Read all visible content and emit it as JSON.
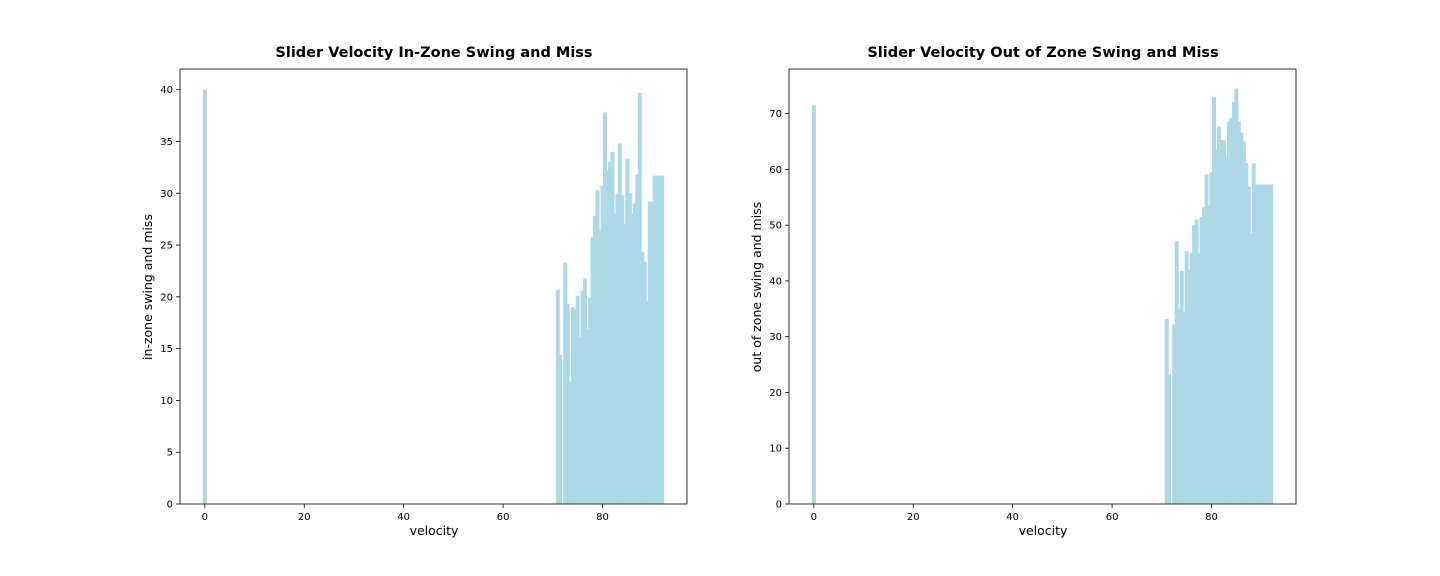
{
  "chart_data": [
    {
      "type": "bar",
      "title": "Slider Velocity In-Zone Swing and Miss",
      "xlabel": "velocity",
      "ylabel": "in-zone swing and miss",
      "xlim": [
        -5,
        97
      ],
      "ylim": [
        0,
        42
      ],
      "xticks": [
        0,
        20,
        40,
        60,
        80
      ],
      "yticks": [
        0,
        5,
        10,
        15,
        20,
        25,
        30,
        35,
        40
      ],
      "bar_color": "#add8e6",
      "x": [
        0,
        71,
        71.5,
        72.5,
        73,
        73.5,
        74,
        74.5,
        75,
        75.5,
        76,
        76.5,
        77,
        77.5,
        78,
        78.5,
        79,
        79.5,
        80,
        80.5,
        81,
        81.5,
        82,
        82.5,
        83,
        83.5,
        84,
        84.5,
        85,
        85.5,
        86,
        86.5,
        87,
        87.5,
        88,
        88.5,
        89,
        89.5,
        90,
        90.5,
        91,
        91.5,
        92
      ],
      "values": [
        40,
        20.7,
        14.4,
        23.3,
        19.3,
        11.8,
        19,
        18.8,
        20.1,
        16.1,
        20.6,
        21.8,
        16.9,
        19.9,
        25.8,
        27.8,
        30.3,
        26.4,
        30.7,
        37.8,
        32.2,
        33,
        34,
        28,
        29.9,
        34.8,
        29.8,
        27,
        33.3,
        30,
        28,
        29,
        31.8,
        39.7,
        24.3,
        23.4,
        19.6,
        29.2,
        29.2,
        31.7,
        31.7,
        31.7,
        31.7
      ]
    },
    {
      "type": "bar",
      "title": "Slider Velocity Out of Zone Swing and Miss",
      "xlabel": "velocity",
      "ylabel": "out of zone swing and miss",
      "xlim": [
        -5,
        97
      ],
      "ylim": [
        0,
        78
      ],
      "xticks": [
        0,
        20,
        40,
        60,
        80
      ],
      "yticks": [
        0,
        10,
        20,
        30,
        40,
        50,
        60,
        70
      ],
      "bar_color": "#add8e6",
      "x": [
        0,
        71,
        71.5,
        72.5,
        73,
        73.5,
        74,
        74.5,
        75,
        75.5,
        76,
        76.5,
        77,
        77.5,
        78,
        78.5,
        79,
        79.5,
        80,
        80.5,
        81,
        81.5,
        82,
        82.5,
        83,
        83.5,
        84,
        84.5,
        85,
        85.5,
        86,
        86.5,
        87,
        87.5,
        88,
        88.5,
        89,
        89.5,
        90,
        90.5,
        91,
        91.5,
        92
      ],
      "values": [
        71.5,
        33.2,
        23.3,
        32.2,
        47.1,
        35,
        41.8,
        34.5,
        45.3,
        41.9,
        45.1,
        50,
        51,
        45,
        51.5,
        53.2,
        59.1,
        53.5,
        59.5,
        73,
        63.5,
        67.6,
        65.3,
        65.2,
        62.3,
        68.5,
        69.2,
        72.1,
        74.5,
        68.6,
        66.6,
        65,
        61.1,
        56.9,
        48.5,
        61.1,
        57.3,
        57.3,
        57.3,
        57.3,
        57.3,
        57.3,
        57.3
      ]
    }
  ]
}
